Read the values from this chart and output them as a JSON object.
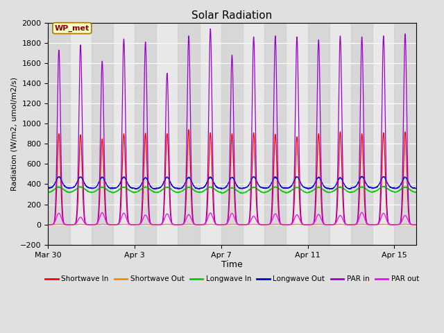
{
  "title": "Solar Radiation",
  "xlabel": "Time",
  "ylabel": "Radiation (W/m2, umol/m2/s)",
  "ylim": [
    -200,
    2000
  ],
  "yticks": [
    -200,
    0,
    200,
    400,
    600,
    800,
    1000,
    1200,
    1400,
    1600,
    1800,
    2000
  ],
  "bg_color": "#e0e0e0",
  "plot_bg_color": "#e8e8e8",
  "grid_color": "#ffffff",
  "legend_label": "WP_met",
  "series": [
    {
      "name": "Shortwave In",
      "color": "#ff0000"
    },
    {
      "name": "Shortwave Out",
      "color": "#ff8800"
    },
    {
      "name": "Longwave In",
      "color": "#00cc00"
    },
    {
      "name": "Longwave Out",
      "color": "#0000dd"
    },
    {
      "name": "PAR in",
      "color": "#9900cc"
    },
    {
      "name": "PAR out",
      "color": "#ff00ff"
    }
  ],
  "x_tick_positions": [
    0,
    4,
    8,
    12,
    16
  ],
  "x_tick_labels": [
    "Mar 30",
    "Apr 3",
    "Apr 7",
    "Apr 11",
    "Apr 15"
  ],
  "n_days": 17,
  "points_per_day": 144
}
